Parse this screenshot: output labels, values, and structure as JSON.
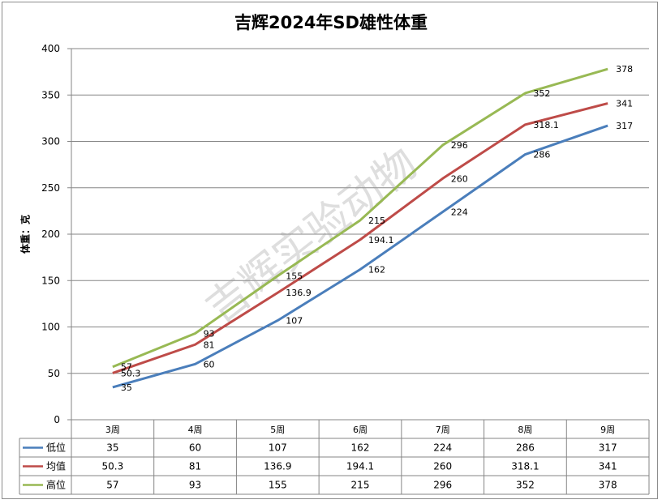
{
  "chart_data": {
    "type": "line",
    "title": "吉辉2024年SD雄性体重",
    "ylabel": "体重：克",
    "xlabel": "",
    "ylim": [
      0,
      400
    ],
    "yticks": [
      0,
      50,
      100,
      150,
      200,
      250,
      300,
      350,
      400
    ],
    "categories": [
      "3周",
      "4周",
      "5周",
      "6周",
      "7周",
      "8周",
      "9周"
    ],
    "grid": true,
    "legend": "data-table",
    "watermark": "吉辉实验动物",
    "series": [
      {
        "name": "低位",
        "color": "#4a7ebb",
        "values": [
          35,
          60,
          107,
          162,
          224,
          286,
          317
        ],
        "labels": [
          "35",
          "60",
          "107",
          "162",
          "224",
          "286",
          "317"
        ]
      },
      {
        "name": "均值",
        "color": "#be4b48",
        "values": [
          50.3,
          81,
          136.9,
          194.1,
          260,
          318.1,
          341
        ],
        "labels": [
          "50.3",
          "81",
          "136.9",
          "194.1",
          "260",
          "318.1",
          "341"
        ]
      },
      {
        "name": "高位",
        "color": "#98b954",
        "values": [
          57,
          93,
          155,
          215,
          296,
          352,
          378
        ],
        "labels": [
          "57",
          "93",
          "155",
          "215",
          "296",
          "352",
          "378"
        ]
      }
    ]
  }
}
